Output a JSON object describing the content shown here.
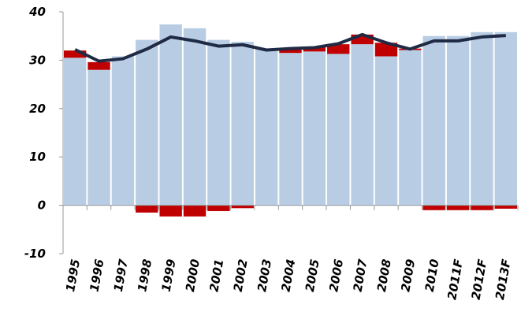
{
  "chart_data": {
    "type": "bar",
    "categories": [
      "1995",
      "1996",
      "1997",
      "1998",
      "1999",
      "2000",
      "2001",
      "2002",
      "2003",
      "2004",
      "2005",
      "2006",
      "2007",
      "2008",
      "2009",
      "2010",
      "2011F",
      "2012F",
      "2013F"
    ],
    "series": [
      {
        "type": "bar",
        "color": "#b8cce4",
        "values": [
          30.5,
          28,
          30.8,
          34.2,
          37.4,
          36.6,
          34.2,
          33.8,
          32.2,
          31.5,
          31.8,
          31.3,
          33.3,
          30.8,
          32.1,
          35,
          35,
          35.8,
          35.8
        ]
      },
      {
        "type": "bar",
        "color": "#c00000",
        "values": [
          1.5,
          1.6,
          null,
          -1.5,
          -2.3,
          -2.3,
          -1.2,
          -0.6,
          null,
          0.8,
          0.9,
          2.0,
          2.0,
          2.8,
          0.3,
          -1,
          -1,
          -1,
          -0.7
        ]
      },
      {
        "type": "line",
        "color": "#1f2a44",
        "values": [
          32.2,
          29.8,
          30.3,
          32.3,
          34.8,
          34,
          32.9,
          33.2,
          32.1,
          32.4,
          32.6,
          33.4,
          35.3,
          33.6,
          32.3,
          34,
          34,
          34.8,
          35.1
        ]
      }
    ],
    "stacked": true,
    "ylim": [
      -10,
      40
    ],
    "yticks": [
      -10,
      0,
      10,
      20,
      30,
      40
    ]
  }
}
